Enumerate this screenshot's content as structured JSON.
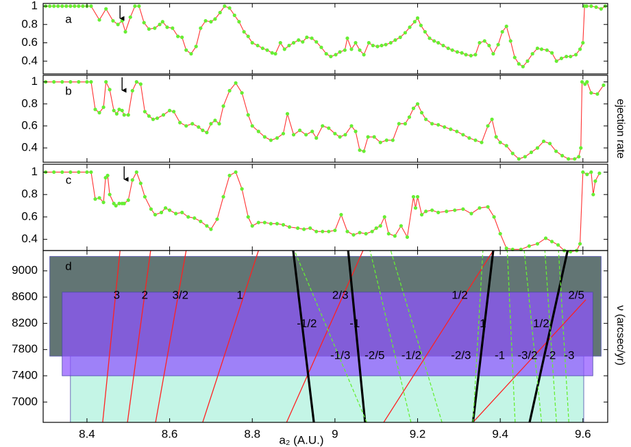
{
  "chart_data": [
    {
      "type": "line",
      "label": "a",
      "arrow_x": 8.48,
      "xlim": [
        8.294,
        9.66
      ],
      "ylim": [
        0.26,
        1.03
      ],
      "yticks": [
        0.4,
        0.6,
        0.8,
        1
      ],
      "x": [
        8.3,
        8.31,
        8.32,
        8.33,
        8.34,
        8.35,
        8.36,
        8.37,
        8.38,
        8.39,
        8.4,
        8.41,
        8.43,
        8.446,
        8.463,
        8.475,
        8.485,
        8.493,
        8.505,
        8.516,
        8.526,
        8.538,
        8.55,
        8.564,
        8.576,
        8.583,
        8.594,
        8.607,
        8.62,
        8.63,
        8.64,
        8.652,
        8.664,
        8.675,
        8.687,
        8.7,
        8.71,
        8.722,
        8.733,
        8.745,
        8.757,
        8.768,
        8.78,
        8.79,
        8.8,
        8.813,
        8.825,
        8.836,
        8.848,
        8.856,
        8.868,
        8.878,
        8.889,
        8.9,
        8.912,
        8.922,
        8.932,
        8.944,
        8.955,
        8.967,
        8.979,
        8.99,
        9.002,
        9.012,
        9.024,
        9.03,
        9.04,
        9.05,
        9.06,
        9.07,
        9.082,
        9.092,
        9.103,
        9.113,
        9.123,
        9.135,
        9.146,
        9.158,
        9.17,
        9.181,
        9.193,
        9.2,
        9.208,
        9.218,
        9.229,
        9.24,
        9.25,
        9.262,
        9.274,
        9.284,
        9.296,
        9.307,
        9.317,
        9.329,
        9.34,
        9.35,
        9.362,
        9.373,
        9.383,
        9.395,
        9.405,
        9.415,
        9.425,
        9.435,
        9.445,
        9.455,
        9.466,
        9.478,
        9.49,
        9.5,
        9.513,
        9.525,
        9.536,
        9.548,
        9.56,
        9.57,
        9.583,
        9.593,
        9.6,
        9.604,
        9.609,
        9.62,
        9.632,
        9.644,
        9.654
      ],
      "series": [
        {
          "color": "#ff3030",
          "marker_color": "#66ee33",
          "values": [
            1,
            1,
            1,
            1,
            1,
            1,
            1,
            1,
            1,
            1,
            1,
            1,
            0.85,
            0.97,
            0.84,
            0.8,
            0.84,
            0.72,
            0.88,
            1,
            1,
            0.82,
            0.75,
            0.76,
            0.8,
            0.83,
            0.77,
            0.76,
            0.67,
            0.66,
            0.52,
            0.48,
            0.56,
            0.76,
            0.84,
            0.83,
            0.86,
            0.93,
            1,
            0.98,
            0.9,
            0.83,
            0.72,
            0.67,
            0.6,
            0.57,
            0.54,
            0.52,
            0.49,
            0.48,
            0.6,
            0.53,
            0.57,
            0.6,
            0.63,
            0.61,
            0.66,
            0.65,
            0.61,
            0.55,
            0.48,
            0.45,
            0.47,
            0.5,
            0.52,
            0.65,
            0.53,
            0.6,
            0.52,
            0.47,
            0.6,
            0.57,
            0.56,
            0.57,
            0.58,
            0.6,
            0.63,
            0.66,
            0.71,
            0.77,
            0.83,
            0.87,
            0.79,
            0.72,
            0.65,
            0.62,
            0.6,
            0.57,
            0.54,
            0.52,
            0.5,
            0.49,
            0.47,
            0.46,
            0.47,
            0.6,
            0.62,
            0.57,
            0.48,
            0.58,
            0.72,
            0.78,
            0.62,
            0.44,
            0.37,
            0.34,
            0.4,
            0.48,
            0.54,
            0.53,
            0.52,
            0.49,
            0.4,
            0.43,
            0.45,
            0.45,
            0.47,
            0.53,
            0.6,
            1,
            1,
            1,
            0.99,
            0.97,
            1
          ]
        }
      ]
    },
    {
      "type": "line",
      "label": "b",
      "arrow_x": 8.485,
      "ylabel": "ejection rate",
      "xlim": [
        8.294,
        9.66
      ],
      "ylim": [
        0.27,
        1.06
      ],
      "yticks": [
        0.4,
        0.6,
        0.8,
        1
      ],
      "x": [
        8.3,
        8.32,
        8.34,
        8.36,
        8.38,
        8.4,
        8.41,
        8.42,
        8.43,
        8.44,
        8.446,
        8.455,
        8.465,
        8.472,
        8.478,
        8.485,
        8.49,
        8.5,
        8.51,
        8.52,
        8.53,
        8.54,
        8.55,
        8.56,
        8.57,
        8.585,
        8.6,
        8.61,
        8.625,
        8.64,
        8.655,
        8.67,
        8.68,
        8.69,
        8.7,
        8.71,
        8.72,
        8.73,
        8.745,
        8.76,
        8.775,
        8.79,
        8.8,
        8.815,
        8.83,
        8.845,
        8.86,
        8.875,
        8.885,
        8.9,
        8.915,
        8.93,
        8.945,
        8.955,
        8.97,
        8.985,
        9,
        9.012,
        9.025,
        9.04,
        9.05,
        9.06,
        9.07,
        9.08,
        9.095,
        9.11,
        9.125,
        9.14,
        9.155,
        9.17,
        9.18,
        9.19,
        9.2,
        9.21,
        9.22,
        9.235,
        9.25,
        9.265,
        9.28,
        9.295,
        9.31,
        9.325,
        9.34,
        9.355,
        9.37,
        9.38,
        9.39,
        9.4,
        9.415,
        9.43,
        9.445,
        9.46,
        9.475,
        9.49,
        9.505,
        9.52,
        9.535,
        9.55,
        9.565,
        9.58,
        9.59,
        9.595,
        9.598,
        9.605,
        9.61,
        9.62,
        9.635,
        9.65
      ],
      "series": [
        {
          "color": "#ff3030",
          "marker_color": "#66ee33",
          "values": [
            1,
            1,
            1,
            1,
            1,
            1,
            1,
            0.75,
            0.72,
            0.77,
            1,
            0.93,
            0.74,
            0.71,
            0.75,
            0.74,
            0.7,
            0.7,
            0.92,
            1,
            0.98,
            0.73,
            0.69,
            0.66,
            0.67,
            0.7,
            0.74,
            0.73,
            0.63,
            0.6,
            0.62,
            0.59,
            0.56,
            0.54,
            0.62,
            0.65,
            0.62,
            0.78,
            0.92,
            0.99,
            0.9,
            0.7,
            0.6,
            0.55,
            0.5,
            0.47,
            0.49,
            0.53,
            0.71,
            0.52,
            0.56,
            0.52,
            0.55,
            0.49,
            0.6,
            0.58,
            0.53,
            0.5,
            0.52,
            0.6,
            0.55,
            0.38,
            0.37,
            0.5,
            0.5,
            0.45,
            0.47,
            0.47,
            0.62,
            0.62,
            0.68,
            0.76,
            0.8,
            0.72,
            0.66,
            0.62,
            0.61,
            0.59,
            0.57,
            0.55,
            0.52,
            0.49,
            0.47,
            0.45,
            0.6,
            0.66,
            0.5,
            0.45,
            0.42,
            0.35,
            0.3,
            0.32,
            0.36,
            0.4,
            0.46,
            0.44,
            0.37,
            0.33,
            0.3,
            0.3,
            0.32,
            0.4,
            1,
            0.98,
            1,
            0.9,
            0.89,
            0.97
          ]
        }
      ]
    },
    {
      "type": "line",
      "label": "c",
      "arrow_x": 8.49,
      "xlim": [
        8.294,
        9.66
      ],
      "ylim": [
        0.3,
        1.07
      ],
      "yticks": [
        0.4,
        0.6,
        0.8,
        1
      ],
      "x": [
        8.3,
        8.32,
        8.34,
        8.36,
        8.38,
        8.4,
        8.41,
        8.42,
        8.43,
        8.44,
        8.445,
        8.45,
        8.455,
        8.465,
        8.47,
        8.478,
        8.485,
        8.49,
        8.5,
        8.51,
        8.52,
        8.53,
        8.54,
        8.555,
        8.565,
        8.58,
        8.59,
        8.6,
        8.615,
        8.63,
        8.645,
        8.66,
        8.675,
        8.69,
        8.7,
        8.715,
        8.73,
        8.745,
        8.76,
        8.775,
        8.79,
        8.8,
        8.815,
        8.83,
        8.845,
        8.86,
        8.875,
        8.89,
        8.91,
        8.925,
        8.94,
        8.955,
        8.97,
        8.985,
        9,
        9.015,
        9.03,
        9.045,
        9.06,
        9.075,
        9.09,
        9.1,
        9.11,
        9.12,
        9.13,
        9.145,
        9.16,
        9.175,
        9.19,
        9.195,
        9.2,
        9.21,
        9.22,
        9.235,
        9.25,
        9.27,
        9.29,
        9.31,
        9.33,
        9.35,
        9.37,
        9.385,
        9.4,
        9.415,
        9.43,
        9.45,
        9.47,
        9.49,
        9.51,
        9.525,
        9.54,
        9.555,
        9.57,
        9.585,
        9.593,
        9.6,
        9.61,
        9.62,
        9.625,
        9.63,
        9.64
      ],
      "series": [
        {
          "color": "#ff3030",
          "marker_color": "#66ee33",
          "values": [
            1,
            1,
            1,
            1,
            1,
            1,
            1,
            0.76,
            0.77,
            0.73,
            0.95,
            0.97,
            0.8,
            0.72,
            0.7,
            0.72,
            0.72,
            0.72,
            0.75,
            0.93,
            1,
            0.9,
            0.78,
            0.67,
            0.62,
            0.64,
            0.68,
            0.66,
            0.63,
            0.64,
            0.6,
            0.59,
            0.56,
            0.52,
            0.49,
            0.58,
            0.78,
            0.97,
            1,
            0.85,
            0.6,
            0.52,
            0.55,
            0.55,
            0.54,
            0.54,
            0.53,
            0.51,
            0.5,
            0.49,
            0.5,
            0.47,
            0.47,
            0.47,
            0.48,
            0.62,
            0.47,
            0.44,
            0.46,
            0.45,
            0.47,
            0.5,
            0.52,
            0.6,
            0.45,
            0.43,
            0.52,
            0.42,
            0.78,
            0.68,
            0.78,
            0.62,
            0.65,
            0.66,
            0.64,
            0.65,
            0.66,
            0.67,
            0.63,
            0.68,
            0.69,
            0.6,
            0.45,
            0.32,
            0.31,
            0.31,
            0.34,
            0.36,
            0.41,
            0.38,
            0.35,
            0.3,
            0.29,
            0.3,
            0.36,
            1,
            0.98,
            1,
            0.8,
            0.92,
            0.99
          ]
        }
      ]
    },
    {
      "type": "lines",
      "label": "d",
      "xlabel": "a₂ (A.U.)",
      "ylabel": "ν (arcsec/yr)",
      "xlim": [
        8.294,
        9.66
      ],
      "ylim": [
        6690,
        9310
      ],
      "xticks": [
        8.4,
        8.6,
        8.8,
        9,
        9.2,
        9.4,
        9.6
      ],
      "yticks": [
        7000,
        7400,
        7800,
        8200,
        8600,
        9000
      ],
      "bands": [
        {
          "color": "#c4f5e6",
          "opacity": 1,
          "x": [
            8.36,
            9.602
          ],
          "y": [
            6690,
            8205
          ]
        },
        {
          "color": "#627574",
          "opacity": 1,
          "x": [
            8.31,
            9.644
          ],
          "y": [
            7700,
            9220
          ]
        },
        {
          "color": "#8f55ff",
          "opacity": 0.72,
          "x": [
            8.34,
            9.624
          ],
          "y": [
            7400,
            8675
          ]
        }
      ],
      "lines": [
        {
          "name": "3",
          "color": "#ff2020",
          "style": "solid",
          "x": [
            8.438,
            8.48
          ],
          "y": [
            6690,
            9310
          ],
          "label_at": [
            8.472,
            8620
          ]
        },
        {
          "name": "2",
          "color": "#ff2020",
          "style": "solid",
          "x": [
            8.498,
            8.554
          ],
          "y": [
            6690,
            9310
          ],
          "label_at": [
            8.54,
            8620
          ]
        },
        {
          "name": "3/2",
          "color": "#ff2020",
          "style": "solid",
          "x": [
            8.566,
            8.64
          ],
          "y": [
            6690,
            9310
          ],
          "label_at": [
            8.626,
            8620
          ]
        },
        {
          "name": "1",
          "color": "#ff2020",
          "style": "solid",
          "x": [
            8.68,
            8.815
          ],
          "y": [
            6690,
            9310
          ],
          "label_at": [
            8.77,
            8620
          ]
        },
        {
          "name": "2/3",
          "color": "#ff2020",
          "style": "solid",
          "x": [
            8.883,
            9.068
          ],
          "y": [
            6690,
            9310
          ],
          "label_at": [
            9.013,
            8620
          ]
        },
        {
          "name": "1/2",
          "color": "#ff2020",
          "style": "solid",
          "x": [
            9.118,
            9.383
          ],
          "y": [
            6690,
            9310
          ],
          "label_at": [
            9.302,
            8620
          ]
        },
        {
          "name": "2/5",
          "color": "#ff2020",
          "style": "solid",
          "x": [
            9.334,
            9.607
          ],
          "y": [
            6690,
            8560
          ],
          "label_at": [
            9.584,
            8620
          ]
        },
        {
          "name": "-1/2",
          "color": "#000000",
          "style": "thick",
          "x": [
            8.949,
            8.899
          ],
          "y": [
            6690,
            9310
          ],
          "label_at": [
            8.932,
            8190
          ]
        },
        {
          "name": "-1",
          "color": "#000000",
          "style": "thick",
          "x": [
            9.073,
            9.032
          ],
          "y": [
            6690,
            9310
          ],
          "label_at": [
            9.048,
            8190
          ]
        },
        {
          "name": "1",
          "color": "#000000",
          "style": "thick",
          "x": [
            9.334,
            9.383
          ],
          "y": [
            6690,
            9310
          ],
          "label_at": [
            9.358,
            8190
          ]
        },
        {
          "name": "1/2",
          "color": "#000000",
          "style": "thick",
          "x": [
            9.471,
            9.563
          ],
          "y": [
            6690,
            9310
          ],
          "label_at": [
            9.499,
            8190
          ]
        },
        {
          "name": "-1/3",
          "color": "#66ee33",
          "style": "dashed",
          "x": [
            9.077,
            8.902
          ],
          "y": [
            6690,
            9310
          ],
          "label_at": [
            9.013,
            7700
          ]
        },
        {
          "name": "-2/5",
          "color": "#66ee33",
          "style": "dashed",
          "x": [
            9.184,
            9.085
          ],
          "y": [
            6690,
            9310
          ],
          "label_at": [
            9.096,
            7700
          ]
        },
        {
          "name": "-1/2",
          "color": "#66ee33",
          "style": "dashed",
          "x": [
            9.259,
            9.135
          ],
          "y": [
            6690,
            9310
          ],
          "label_at": [
            9.185,
            7700
          ]
        },
        {
          "name": "-2/3",
          "color": "#66ee33",
          "style": "dashed",
          "x": [
            9.334,
            9.358
          ],
          "y": [
            6690,
            9310
          ],
          "label_at": [
            9.305,
            7700
          ]
        },
        {
          "name": "-1",
          "color": "#66ee33",
          "style": "dashed",
          "x": [
            9.436,
            9.417
          ],
          "y": [
            6690,
            9310
          ],
          "label_at": [
            9.399,
            7700
          ]
        },
        {
          "name": "-3/2",
          "color": "#66ee33",
          "style": "dashed",
          "x": [
            9.5,
            9.458
          ],
          "y": [
            6690,
            9310
          ],
          "label_at": [
            9.466,
            7700
          ]
        },
        {
          "name": "-2",
          "color": "#66ee33",
          "style": "dashed",
          "x": [
            9.536,
            9.508
          ],
          "y": [
            6690,
            9310
          ],
          "label_at": [
            9.522,
            7700
          ]
        },
        {
          "name": "-3",
          "color": "#66ee33",
          "style": "dashed",
          "x": [
            9.566,
            9.541
          ],
          "y": [
            6690,
            9310
          ],
          "label_at": [
            9.567,
            7700
          ]
        }
      ]
    }
  ]
}
